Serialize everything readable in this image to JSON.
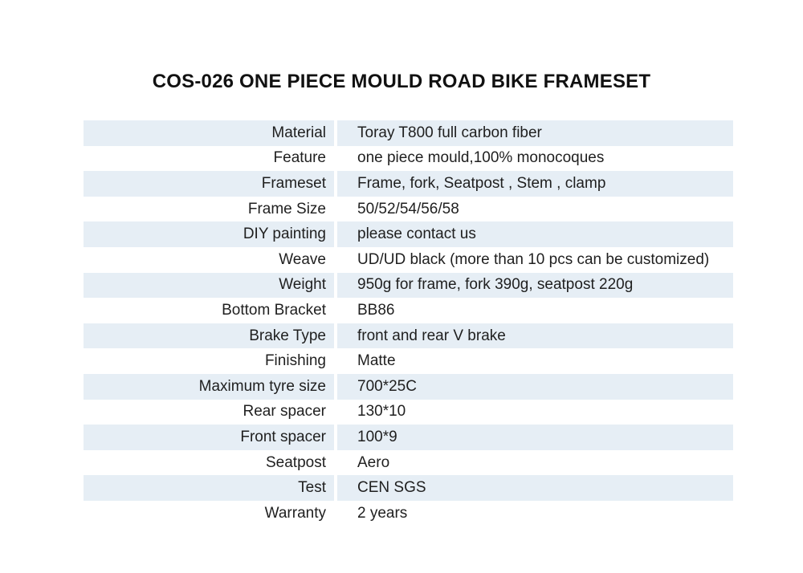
{
  "title": "COS-026 ONE PIECE MOULD ROAD BIKE FRAMESET",
  "colors": {
    "row_shade": "#e6eef5",
    "text": "#1f1f1f",
    "background": "#ffffff"
  },
  "specs": [
    {
      "label": "Material",
      "value": "Toray T800 full carbon fiber"
    },
    {
      "label": "Feature",
      "value": "one piece mould,100% monocoques"
    },
    {
      "label": "Frameset",
      "value": "Frame, fork, Seatpost , Stem , clamp"
    },
    {
      "label": "Frame Size",
      "value": "50/52/54/56/58"
    },
    {
      "label": "DIY painting",
      "value": "please contact us"
    },
    {
      "label": "Weave",
      "value": "UD/UD black (more than 10 pcs can be customized)"
    },
    {
      "label": "Weight",
      "value": "950g for frame, fork 390g, seatpost 220g"
    },
    {
      "label": "Bottom Bracket",
      "value": "BB86"
    },
    {
      "label": "Brake Type",
      "value": "front and rear V brake"
    },
    {
      "label": "Finishing",
      "value": "Matte"
    },
    {
      "label": "Maximum tyre size",
      "value": "700*25C"
    },
    {
      "label": "Rear spacer",
      "value": "130*10"
    },
    {
      "label": "Front spacer",
      "value": "100*9"
    },
    {
      "label": "Seatpost",
      "value": "Aero"
    },
    {
      "label": "Test",
      "value": "CEN SGS"
    },
    {
      "label": "Warranty",
      "value": "2 years"
    }
  ]
}
